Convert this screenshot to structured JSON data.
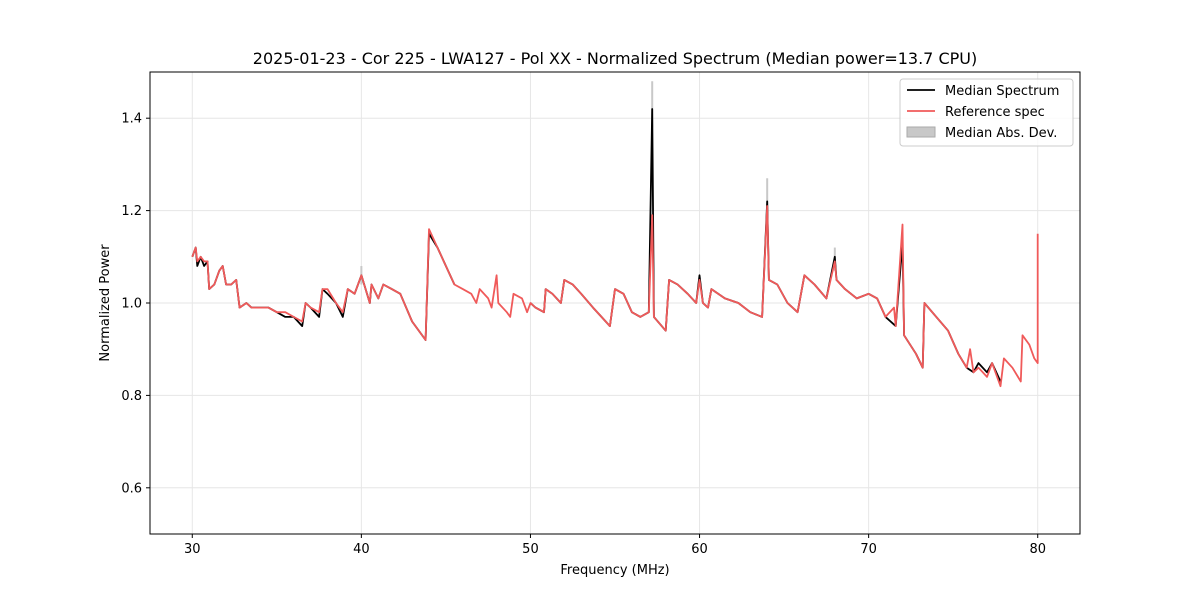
{
  "chart_data": {
    "type": "line",
    "title": "2025-01-23 - Cor 225 - LWA127 - Pol XX - Normalized Spectrum (Median power=13.7 CPU)",
    "xlabel": "Frequency (MHz)",
    "ylabel": "Normalized Power",
    "xlim": [
      27.5,
      82.5
    ],
    "ylim": [
      0.5,
      1.5
    ],
    "xticks": [
      30,
      40,
      50,
      60,
      70,
      80
    ],
    "yticks": [
      0.6,
      0.8,
      1.0,
      1.2,
      1.4
    ],
    "xtick_labels": [
      "30",
      "40",
      "50",
      "60",
      "70",
      "80"
    ],
    "ytick_labels": [
      "0.6",
      "0.8",
      "1.0",
      "1.2",
      "1.4"
    ],
    "grid": true,
    "legend_position": "top-right",
    "legend": [
      {
        "label": "Median Spectrum",
        "color": "#000000",
        "kind": "line"
      },
      {
        "label": "Reference spec",
        "color": "#f05a5a",
        "kind": "line"
      },
      {
        "label": "Median Abs. Dev.",
        "color": "#c8c8c8",
        "kind": "patch"
      }
    ],
    "series": [
      {
        "name": "Median Spectrum",
        "color": "#000000",
        "segments": [
          [
            [
              30.0,
              1.1
            ],
            [
              30.2,
              1.12
            ],
            [
              30.3,
              1.08
            ],
            [
              30.5,
              1.1
            ],
            [
              30.7,
              1.08
            ],
            [
              30.9,
              1.09
            ],
            [
              31.0,
              1.03
            ],
            [
              31.3,
              1.04
            ],
            [
              31.6,
              1.07
            ],
            [
              31.8,
              1.08
            ],
            [
              32.0,
              1.04
            ],
            [
              32.3,
              1.04
            ],
            [
              32.6,
              1.05
            ],
            [
              32.8,
              0.99
            ],
            [
              33.2,
              1.0
            ],
            [
              33.5,
              0.99
            ],
            [
              34.0,
              0.99
            ],
            [
              34.5,
              0.99
            ],
            [
              35.0,
              0.98
            ],
            [
              35.5,
              0.97
            ],
            [
              36.0,
              0.97
            ],
            [
              36.5,
              0.95
            ],
            [
              36.7,
              1.0
            ],
            [
              37.0,
              0.99
            ],
            [
              37.5,
              0.97
            ],
            [
              37.7,
              1.03
            ],
            [
              38.0,
              1.02
            ],
            [
              38.5,
              1.0
            ],
            [
              38.9,
              0.97
            ],
            [
              39.2,
              1.03
            ],
            [
              39.6,
              1.02
            ],
            [
              40.0,
              1.06
            ],
            [
              40.5,
              1.0
            ],
            [
              40.6,
              1.04
            ],
            [
              41.0,
              1.01
            ],
            [
              41.3,
              1.04
            ],
            [
              41.8,
              1.03
            ],
            [
              42.3,
              1.02
            ],
            [
              43.0,
              0.96
            ],
            [
              43.8,
              0.92
            ],
            [
              44.0,
              1.15
            ],
            [
              44.5,
              1.12
            ],
            [
              45.0,
              1.08
            ],
            [
              45.5,
              1.04
            ]
          ],
          [
            [
              50.0,
              1.0
            ],
            [
              50.3,
              0.99
            ],
            [
              50.8,
              0.98
            ],
            [
              50.9,
              1.03
            ],
            [
              51.3,
              1.02
            ],
            [
              51.8,
              1.0
            ],
            [
              52.0,
              1.05
            ],
            [
              52.5,
              1.04
            ],
            [
              53.0,
              1.02
            ],
            [
              53.7,
              0.99
            ],
            [
              54.2,
              0.97
            ],
            [
              54.7,
              0.95
            ],
            [
              55.0,
              1.03
            ],
            [
              55.5,
              1.02
            ],
            [
              56.0,
              0.98
            ],
            [
              56.5,
              0.97
            ],
            [
              57.0,
              0.98
            ],
            [
              57.2,
              1.42
            ],
            [
              57.3,
              0.97
            ],
            [
              58.0,
              0.94
            ],
            [
              58.2,
              1.05
            ],
            [
              58.7,
              1.04
            ],
            [
              59.3,
              1.02
            ],
            [
              59.8,
              1.0
            ],
            [
              60.0,
              1.06
            ],
            [
              60.2,
              1.0
            ],
            [
              60.5,
              0.99
            ],
            [
              60.7,
              1.03
            ],
            [
              61.5,
              1.01
            ],
            [
              62.3,
              1.0
            ],
            [
              63.0,
              0.98
            ],
            [
              63.7,
              0.97
            ],
            [
              64.0,
              1.22
            ],
            [
              64.1,
              1.05
            ],
            [
              64.6,
              1.04
            ],
            [
              65.2,
              1.0
            ],
            [
              65.8,
              0.98
            ],
            [
              66.2,
              1.06
            ],
            [
              66.8,
              1.04
            ],
            [
              67.5,
              1.01
            ],
            [
              68.0,
              1.1
            ],
            [
              68.1,
              1.05
            ],
            [
              68.6,
              1.03
            ],
            [
              69.3,
              1.01
            ],
            [
              70.0,
              1.02
            ],
            [
              70.5,
              1.01
            ],
            [
              71.0,
              0.97
            ],
            [
              71.6,
              0.95
            ],
            [
              72.0,
              1.13
            ],
            [
              72.1,
              0.93
            ],
            [
              72.8,
              0.89
            ],
            [
              73.2,
              0.86
            ],
            [
              73.3,
              1.0
            ],
            [
              74.0,
              0.97
            ],
            [
              74.7,
              0.94
            ],
            [
              75.3,
              0.89
            ],
            [
              75.8,
              0.86
            ],
            [
              76.2,
              0.85
            ],
            [
              76.5,
              0.87
            ],
            [
              77.0,
              0.85
            ],
            [
              77.3,
              0.87
            ],
            [
              77.8,
              0.83
            ]
          ]
        ]
      },
      {
        "name": "Reference spec",
        "color": "#f05a5a",
        "segments": [
          [
            [
              30.0,
              1.1
            ],
            [
              30.2,
              1.12
            ],
            [
              30.3,
              1.09
            ],
            [
              30.5,
              1.1
            ],
            [
              30.7,
              1.09
            ],
            [
              30.9,
              1.09
            ],
            [
              31.0,
              1.03
            ],
            [
              31.3,
              1.04
            ],
            [
              31.6,
              1.07
            ],
            [
              31.8,
              1.08
            ],
            [
              32.0,
              1.04
            ],
            [
              32.3,
              1.04
            ],
            [
              32.6,
              1.05
            ],
            [
              32.8,
              0.99
            ],
            [
              33.2,
              1.0
            ],
            [
              33.5,
              0.99
            ],
            [
              34.0,
              0.99
            ],
            [
              34.5,
              0.99
            ],
            [
              35.0,
              0.98
            ],
            [
              35.5,
              0.98
            ],
            [
              36.0,
              0.97
            ],
            [
              36.5,
              0.96
            ],
            [
              36.7,
              1.0
            ],
            [
              37.0,
              0.99
            ],
            [
              37.5,
              0.98
            ],
            [
              37.7,
              1.03
            ],
            [
              38.0,
              1.03
            ],
            [
              38.5,
              1.0
            ],
            [
              38.9,
              0.98
            ],
            [
              39.2,
              1.03
            ],
            [
              39.6,
              1.02
            ],
            [
              40.0,
              1.06
            ],
            [
              40.5,
              1.0
            ],
            [
              40.6,
              1.04
            ],
            [
              41.0,
              1.01
            ],
            [
              41.3,
              1.04
            ],
            [
              41.8,
              1.03
            ],
            [
              42.3,
              1.02
            ],
            [
              43.0,
              0.96
            ],
            [
              43.8,
              0.92
            ],
            [
              44.0,
              1.16
            ],
            [
              44.5,
              1.12
            ],
            [
              45.0,
              1.08
            ],
            [
              45.5,
              1.04
            ],
            [
              46.0,
              1.03
            ],
            [
              46.5,
              1.02
            ],
            [
              46.8,
              1.0
            ],
            [
              47.0,
              1.03
            ],
            [
              47.5,
              1.01
            ],
            [
              47.7,
              0.99
            ],
            [
              48.0,
              1.06
            ],
            [
              48.1,
              1.0
            ],
            [
              48.6,
              0.98
            ],
            [
              48.8,
              0.97
            ],
            [
              49.0,
              1.02
            ],
            [
              49.5,
              1.01
            ],
            [
              49.8,
              0.98
            ],
            [
              50.0,
              1.0
            ],
            [
              50.3,
              0.99
            ],
            [
              50.8,
              0.98
            ],
            [
              50.9,
              1.03
            ],
            [
              51.3,
              1.02
            ],
            [
              51.8,
              1.0
            ],
            [
              52.0,
              1.05
            ],
            [
              52.5,
              1.04
            ],
            [
              53.0,
              1.02
            ],
            [
              53.7,
              0.99
            ],
            [
              54.2,
              0.97
            ],
            [
              54.7,
              0.95
            ],
            [
              55.0,
              1.03
            ],
            [
              55.5,
              1.02
            ],
            [
              56.0,
              0.98
            ],
            [
              56.5,
              0.97
            ],
            [
              57.0,
              0.98
            ],
            [
              57.2,
              1.19
            ],
            [
              57.3,
              0.97
            ],
            [
              58.0,
              0.94
            ],
            [
              58.2,
              1.05
            ],
            [
              58.7,
              1.04
            ],
            [
              59.3,
              1.02
            ],
            [
              59.8,
              1.0
            ],
            [
              60.0,
              1.05
            ],
            [
              60.2,
              1.0
            ],
            [
              60.5,
              0.99
            ],
            [
              60.7,
              1.03
            ],
            [
              61.5,
              1.01
            ],
            [
              62.3,
              1.0
            ],
            [
              63.0,
              0.98
            ],
            [
              63.7,
              0.97
            ],
            [
              64.0,
              1.21
            ],
            [
              64.1,
              1.05
            ],
            [
              64.6,
              1.04
            ],
            [
              65.2,
              1.0
            ],
            [
              65.8,
              0.98
            ],
            [
              66.2,
              1.06
            ],
            [
              66.8,
              1.04
            ],
            [
              67.5,
              1.01
            ],
            [
              68.0,
              1.09
            ],
            [
              68.1,
              1.05
            ],
            [
              68.6,
              1.03
            ],
            [
              69.3,
              1.01
            ],
            [
              70.0,
              1.02
            ],
            [
              70.5,
              1.01
            ],
            [
              71.0,
              0.97
            ],
            [
              71.5,
              0.99
            ],
            [
              71.6,
              0.95
            ],
            [
              72.0,
              1.17
            ],
            [
              72.1,
              0.93
            ],
            [
              72.8,
              0.89
            ],
            [
              73.2,
              0.86
            ],
            [
              73.3,
              1.0
            ],
            [
              74.0,
              0.97
            ],
            [
              74.7,
              0.94
            ],
            [
              75.3,
              0.89
            ],
            [
              75.8,
              0.86
            ],
            [
              76.0,
              0.9
            ],
            [
              76.2,
              0.85
            ],
            [
              76.5,
              0.86
            ],
            [
              77.0,
              0.84
            ],
            [
              77.3,
              0.87
            ],
            [
              77.8,
              0.82
            ],
            [
              78.0,
              0.88
            ],
            [
              78.5,
              0.86
            ],
            [
              79.0,
              0.83
            ],
            [
              79.1,
              0.93
            ],
            [
              79.5,
              0.91
            ],
            [
              79.8,
              0.88
            ],
            [
              80.0,
              0.87
            ],
            [
              80.0,
              1.15
            ]
          ]
        ]
      },
      {
        "name": "Median Abs. Dev.",
        "color": "#c8c8c8",
        "spikes": [
          [
            57.2,
            1.38,
            1.48
          ],
          [
            64.0,
            1.18,
            1.27
          ],
          [
            68.0,
            1.07,
            1.12
          ],
          [
            40.0,
            1.04,
            1.08
          ],
          [
            72.0,
            1.1,
            1.15
          ]
        ]
      }
    ]
  }
}
